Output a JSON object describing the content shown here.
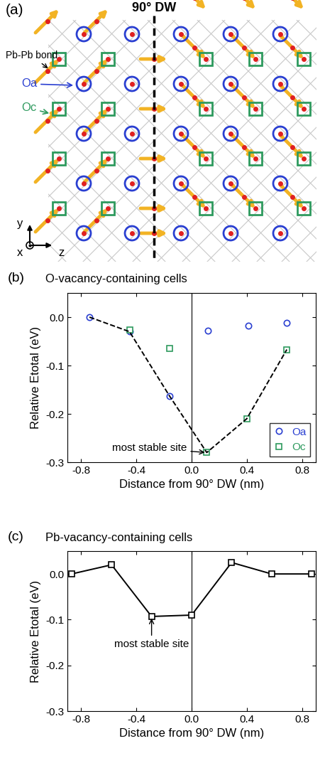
{
  "diagram": {
    "label": "(a)",
    "wall_label": "90° DW",
    "annotations": {
      "bond": "Pb-Pb bond",
      "oa": "Oa",
      "oc": "Oc"
    },
    "axes": {
      "vertical": "y",
      "out_of_plane": "x",
      "horizontal": "z"
    }
  },
  "chart_data": [
    {
      "type": "scatter",
      "label": "(b)",
      "title": "O-vacancy-containing cells",
      "x_label": "Distance from 90° DW (nm)",
      "y_label": "Relative Etotal (eV)",
      "xlim": [
        -0.9,
        0.9
      ],
      "xticks": [
        -0.8,
        -0.4,
        0.0,
        0.4,
        0.8
      ],
      "ylim": [
        -0.3,
        0.05
      ],
      "yticks": [
        -0.3,
        -0.2,
        -0.1,
        0.0
      ],
      "vlines": [
        0.0
      ],
      "legend": "lower right",
      "series": [
        {
          "name": "Oa",
          "color": "#2a3fd1",
          "marker": "circle",
          "line_style": "none",
          "x": [
            -0.74,
            -0.45,
            -0.16,
            0.12,
            0.41,
            0.69
          ],
          "values": [
            0.0,
            -0.03,
            -0.163,
            -0.028,
            -0.018,
            -0.012
          ]
        },
        {
          "name": "Oc",
          "color": "#2e9a5e",
          "marker": "square",
          "line_style": "none",
          "x": [
            -0.45,
            -0.16,
            0.11,
            0.4,
            0.69
          ],
          "values": [
            -0.027,
            -0.065,
            -0.28,
            -0.21,
            -0.067
          ]
        },
        {
          "color": "#000000",
          "marker": "none",
          "line_style": "dashed",
          "x": [
            -0.74,
            -0.45,
            -0.16,
            0.11,
            0.4,
            0.69
          ],
          "values": [
            0.0,
            -0.03,
            -0.163,
            -0.28,
            -0.21,
            -0.067
          ]
        }
      ],
      "annotations": [
        {
          "text": "most stable site",
          "x": 0.11,
          "y": -0.28
        }
      ]
    },
    {
      "type": "line",
      "label": "(c)",
      "title": "Pb-vacancy-containing cells",
      "x_label": "Distance from 90° DW (nm)",
      "y_label": "Relative Etotal (eV)",
      "xlim": [
        -0.9,
        0.9
      ],
      "xticks": [
        -0.8,
        -0.4,
        0.0,
        0.4,
        0.8
      ],
      "ylim": [
        -0.3,
        0.05
      ],
      "yticks": [
        -0.3,
        -0.2,
        -0.1,
        0.0
      ],
      "vlines": [
        0.0
      ],
      "series": [
        {
          "color": "#000000",
          "marker": "square",
          "line_style": "solid",
          "x": [
            -0.87,
            -0.58,
            -0.29,
            0.0,
            0.29,
            0.58,
            0.87
          ],
          "values": [
            0.0,
            0.02,
            -0.093,
            -0.09,
            0.025,
            0.0,
            0.0
          ]
        }
      ],
      "annotations": [
        {
          "text": "most stable site",
          "x": -0.29,
          "y": -0.093
        }
      ]
    }
  ]
}
